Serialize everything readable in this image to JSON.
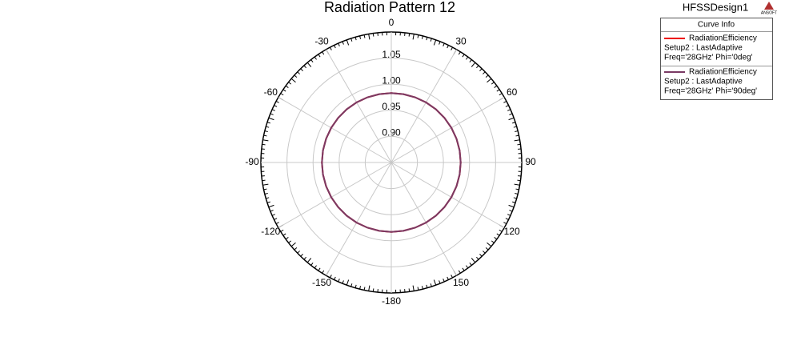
{
  "chart_data": {
    "type": "polar",
    "title": "Radiation Pattern 12",
    "design": "HFSSDesign1",
    "logo": "ANSOFT",
    "legend_title": "Curve Info",
    "rlim": [
      0.85,
      1.1
    ],
    "rticks": [
      {
        "value": 0.9,
        "label": "0.90"
      },
      0.95,
      {
        "value": 1.0,
        "label": "1.00"
      },
      1.05
    ],
    "thetaticks": [
      0,
      30,
      60,
      90,
      120,
      150,
      -180,
      -150,
      -120,
      -90,
      -60,
      -30
    ],
    "x": [
      -180,
      -170,
      -160,
      -150,
      -140,
      -130,
      -120,
      -110,
      -100,
      -90,
      -80,
      -70,
      -60,
      -50,
      -40,
      -30,
      -20,
      -10,
      0,
      10,
      20,
      30,
      40,
      50,
      60,
      70,
      80,
      90,
      100,
      110,
      120,
      130,
      140,
      150,
      160,
      170,
      180
    ],
    "series": [
      {
        "name": "RadiationEfficiency",
        "setup": "Setup2 : LastAdaptive",
        "params": "Freq='28GHz' Phi='0deg'",
        "color": "#ee0000",
        "values": [
          0.983,
          0.983,
          0.983,
          0.983,
          0.983,
          0.983,
          0.983,
          0.983,
          0.983,
          0.983,
          0.983,
          0.983,
          0.983,
          0.983,
          0.983,
          0.983,
          0.983,
          0.983,
          0.983,
          0.983,
          0.983,
          0.983,
          0.983,
          0.983,
          0.983,
          0.983,
          0.983,
          0.983,
          0.983,
          0.983,
          0.983,
          0.983,
          0.983,
          0.983,
          0.983,
          0.983,
          0.983
        ]
      },
      {
        "name": "RadiationEfficiency",
        "setup": "Setup2 : LastAdaptive",
        "params": "Freq='28GHz' Phi='90deg'",
        "color": "#7a3a64",
        "values": [
          0.983,
          0.983,
          0.983,
          0.983,
          0.983,
          0.983,
          0.983,
          0.983,
          0.983,
          0.983,
          0.983,
          0.983,
          0.983,
          0.983,
          0.983,
          0.983,
          0.983,
          0.983,
          0.983,
          0.983,
          0.983,
          0.983,
          0.983,
          0.983,
          0.983,
          0.983,
          0.983,
          0.983,
          0.983,
          0.983,
          0.983,
          0.983,
          0.983,
          0.983,
          0.983,
          0.983,
          0.983
        ]
      }
    ]
  }
}
